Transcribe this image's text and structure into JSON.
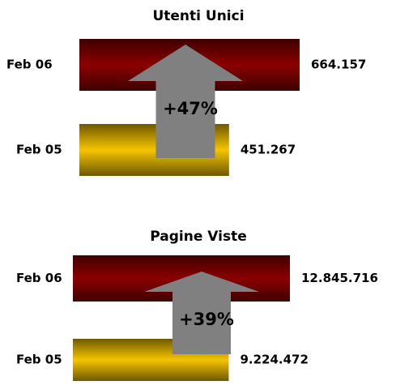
{
  "chart_data": [
    {
      "type": "bar",
      "orientation": "horizontal",
      "title": "Utenti Unici",
      "categories": [
        "Feb 06",
        "Feb 05"
      ],
      "values": [
        664157,
        451267
      ],
      "value_labels": [
        "664.157",
        "451.267"
      ],
      "colors": [
        "#8b0000",
        "#f5c400"
      ],
      "annotation": "+47%"
    },
    {
      "type": "bar",
      "orientation": "horizontal",
      "title": "Pagine Viste",
      "categories": [
        "Feb 06",
        "Feb 05"
      ],
      "values": [
        12845716,
        9224472
      ],
      "value_labels": [
        "12.845.716",
        "9.224.472"
      ],
      "colors": [
        "#8b0000",
        "#f5c400"
      ],
      "annotation": "+39%"
    }
  ]
}
